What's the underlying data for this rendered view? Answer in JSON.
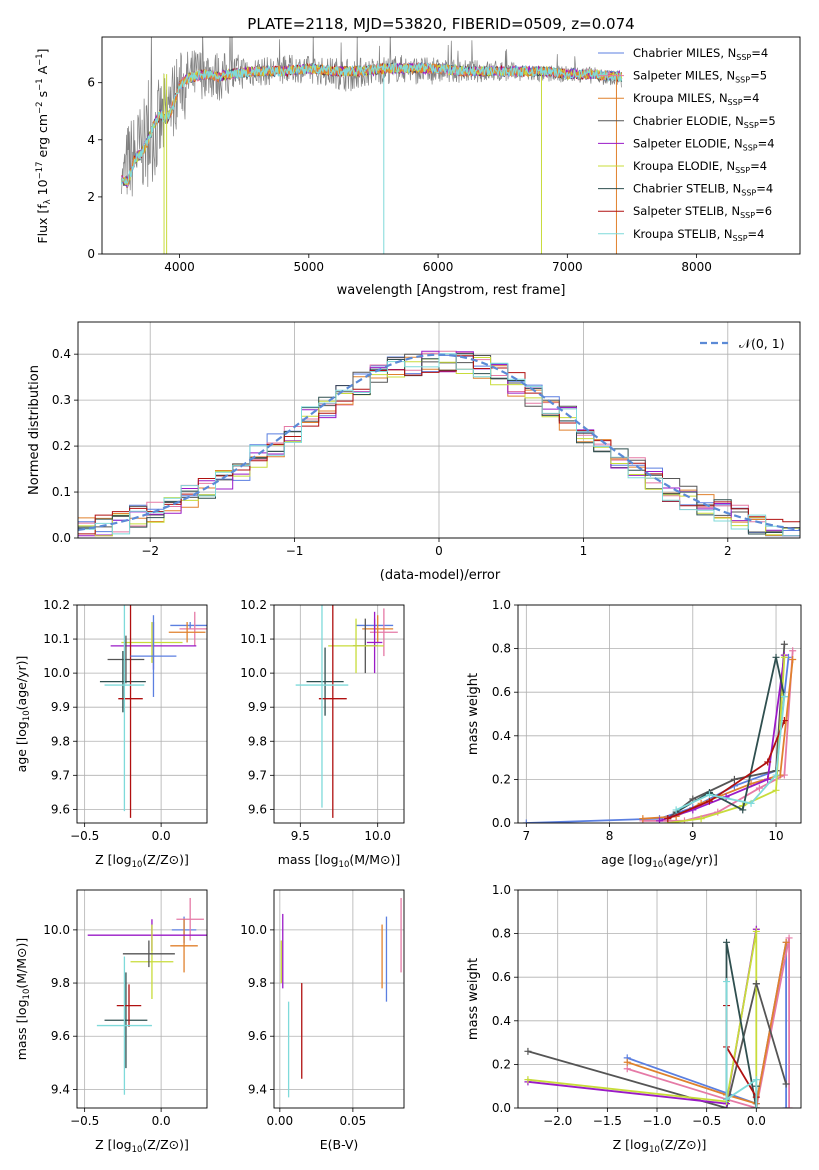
{
  "figure_title": "PLATE=2118, MJD=53820, FIBERID=0509, z=0.074",
  "chart_data": [
    {
      "id": "spectrum",
      "type": "line",
      "xlabel": "wavelength [Angstrom, rest frame]",
      "ylabel": "Flux [f_λ 10^-17 erg cm^-2 s^-1 A^-1]",
      "ylabel_parts": {
        "pre": "Flux [f",
        "sub1": "λ",
        "mid": "10",
        "sup1": "−17",
        "mid2": " erg cm",
        "sup2": "−2",
        "mid3": " s",
        "sup3": "−1",
        "mid4": " A",
        "sup4": "−1",
        "post": "]"
      },
      "xlim": [
        3400,
        8800
      ],
      "ylim": [
        0,
        7.6
      ],
      "xticks": [
        4000,
        5000,
        6000,
        7000,
        8000
      ],
      "yticks": [
        0,
        2,
        4,
        6
      ],
      "grid": false,
      "legend_position": "top-right",
      "data_gray": {
        "x": [
          3550,
          3600,
          3700,
          3800,
          3900,
          4000,
          4100,
          4200,
          4300,
          4500,
          4700,
          4900,
          5100,
          5300,
          5500,
          5700,
          5900,
          6100,
          6300,
          6500,
          6700,
          6900,
          7100,
          7300,
          7420
        ],
        "y": [
          2.6,
          3.2,
          3.7,
          4.2,
          4.9,
          5.9,
          6.2,
          6.4,
          6.2,
          6.4,
          6.4,
          6.5,
          6.4,
          6.3,
          6.4,
          6.5,
          6.4,
          6.4,
          6.4,
          6.4,
          6.3,
          6.3,
          6.3,
          6.2,
          6.0
        ],
        "noise": [
          0.5,
          1.5,
          1.6,
          1.7,
          1.6,
          1.2,
          1.0,
          0.9,
          0.9,
          0.6,
          0.5,
          0.5,
          0.5,
          0.6,
          0.5,
          0.5,
          0.5,
          0.4,
          0.4,
          0.4,
          0.3,
          0.3,
          0.3,
          0.3,
          0.3
        ]
      },
      "model_x": [
        3550,
        3600,
        3650,
        3700,
        3750,
        3800,
        3850,
        3900,
        3950,
        4000,
        4050,
        4100,
        4200,
        4300,
        4400,
        4600,
        4800,
        5000,
        5200,
        5400,
        5600,
        5800,
        6000,
        6200,
        6400,
        6600,
        6800,
        7000,
        7200,
        7420
      ],
      "model_y": [
        2.6,
        2.5,
        3.3,
        3.5,
        3.9,
        4.5,
        4.9,
        4.7,
        5.2,
        5.9,
        6.1,
        6.2,
        6.3,
        6.2,
        6.3,
        6.4,
        6.4,
        6.5,
        6.4,
        6.4,
        6.5,
        6.5,
        6.5,
        6.4,
        6.4,
        6.4,
        6.4,
        6.3,
        6.3,
        6.2
      ],
      "series": [
        {
          "name": "Chabrier MILES",
          "nssp": "4",
          "color": "#5b7fe0"
        },
        {
          "name": "Salpeter MILES",
          "nssp": "5",
          "color": "#e57aa6"
        },
        {
          "name": "Kroupa MILES",
          "nssp": "4",
          "color": "#e0812d"
        },
        {
          "name": "Chabrier ELODIE",
          "nssp": "5",
          "color": "#555555"
        },
        {
          "name": "Salpeter ELODIE",
          "nssp": "4",
          "color": "#9a1ac7"
        },
        {
          "name": "Kroupa ELODIE",
          "nssp": "4",
          "color": "#c8dc3a"
        },
        {
          "name": "Chabrier STELIB",
          "nssp": "4",
          "color": "#2f4f4f"
        },
        {
          "name": "Salpeter STELIB",
          "nssp": "6",
          "color": "#b01010"
        },
        {
          "name": "Kroupa STELIB",
          "nssp": "4",
          "color": "#7fdada"
        }
      ]
    },
    {
      "id": "residuals",
      "type": "line",
      "xlabel": "(data-model)/error",
      "ylabel": "Normed distribution",
      "xlim": [
        -2.5,
        2.5
      ],
      "ylim": [
        0,
        0.47
      ],
      "xticks": [
        -2,
        -1,
        0,
        1,
        2
      ],
      "xtick_labels": [
        "−2",
        "−1",
        "0",
        "1",
        "2"
      ],
      "yticks": [
        0.0,
        0.1,
        0.2,
        0.3,
        0.4
      ],
      "ytick_labels": [
        "0.0",
        "0.1",
        "0.2",
        "0.3",
        "0.4"
      ],
      "grid": true,
      "legend": "𝒩(0, 1)",
      "legend_position": "top-right",
      "gauss_color": "#5b8ad6"
    },
    {
      "id": "age_vs_Z",
      "type": "scatter",
      "xlabel_pre": "Z [log",
      "xlabel_sub": "10",
      "xlabel_post": "(Z/Z⊙)]",
      "ylabel_pre": "age  [log",
      "ylabel_sub": "10",
      "ylabel_post": "(age/yr)]",
      "xlim": [
        -0.55,
        0.3
      ],
      "ylim": [
        9.56,
        10.2
      ],
      "xticks": [
        -0.5,
        0.0
      ],
      "xtick_labels": [
        "−0.5",
        "0.0"
      ],
      "yticks": [
        9.6,
        9.7,
        9.8,
        9.9,
        10.0,
        10.1,
        10.2
      ],
      "ytick_labels": [
        "9.6",
        "9.7",
        "9.8",
        "9.9",
        "10.0",
        "10.1",
        "10.2"
      ],
      "grid": true,
      "points": [
        {
          "x": 0.19,
          "xerr": 0.13,
          "y": 10.14,
          "yerr": 0.01,
          "c": 0
        },
        {
          "x": 0.22,
          "xerr": 0.1,
          "y": 10.13,
          "yerr": 0.05,
          "c": 1
        },
        {
          "x": 0.17,
          "xerr": 0.12,
          "y": 10.12,
          "yerr": 0.03,
          "c": 2
        },
        {
          "x": -0.05,
          "xerr": 0.28,
          "y": 10.08,
          "yerr": 0.07,
          "c": 4
        },
        {
          "x": -0.06,
          "xerr": 0.2,
          "y": 10.09,
          "yerr": 0.06,
          "c": 5
        },
        {
          "x": -0.23,
          "xerr": 0.12,
          "y": 10.04,
          "yerr": 0.07,
          "c": 3
        },
        {
          "x": -0.25,
          "xerr": 0.15,
          "y": 9.975,
          "yerr": 0.09,
          "c": 6
        },
        {
          "x": -0.2,
          "xerr": 0.08,
          "y": 9.925,
          "yerr": 0.35,
          "c": 7
        },
        {
          "x": -0.24,
          "xerr": 0.13,
          "y": 9.965,
          "yerr": 0.37,
          "c": 8
        },
        {
          "x": -0.05,
          "xerr": 0.15,
          "y": 10.05,
          "yerr": 0.12,
          "c": 0
        }
      ]
    },
    {
      "id": "age_vs_mass",
      "type": "scatter",
      "xlabel_pre": "mass [log",
      "xlabel_sub": "10",
      "xlabel_post": "(M/M⊙)]",
      "xlim": [
        9.33,
        10.17
      ],
      "ylim": [
        9.56,
        10.2
      ],
      "xticks": [
        9.5,
        10.0
      ],
      "xtick_labels": [
        "9.5",
        "10.0"
      ],
      "yticks": [
        9.6,
        9.7,
        9.8,
        9.9,
        10.0,
        10.1,
        10.2
      ],
      "ytick_labels": [
        "9.6",
        "9.7",
        "9.8",
        "9.9",
        "10.0",
        "10.1",
        "10.2"
      ],
      "grid": true,
      "points": [
        {
          "x": 9.98,
          "xerr": 0.12,
          "y": 10.14,
          "yerr": 0.02,
          "c": 0
        },
        {
          "x": 10.04,
          "xerr": 0.09,
          "y": 10.12,
          "yerr": 0.07,
          "c": 1
        },
        {
          "x": 10.0,
          "xerr": 0.1,
          "y": 10.13,
          "yerr": 0.04,
          "c": 2
        },
        {
          "x": 9.92,
          "xerr": 0.08,
          "y": 10.08,
          "yerr": 0.08,
          "c": 3
        },
        {
          "x": 9.98,
          "xerr": 0.05,
          "y": 10.09,
          "yerr": 0.09,
          "c": 4
        },
        {
          "x": 9.86,
          "xerr": 0.18,
          "y": 10.08,
          "yerr": 0.08,
          "c": 5
        },
        {
          "x": 9.66,
          "xerr": 0.12,
          "y": 9.975,
          "yerr": 0.1,
          "c": 6
        },
        {
          "x": 9.71,
          "xerr": 0.09,
          "y": 9.925,
          "yerr": 0.35,
          "c": 7
        },
        {
          "x": 9.64,
          "xerr": 0.17,
          "y": 9.965,
          "yerr": 0.36,
          "c": 8
        }
      ]
    },
    {
      "id": "massweight_vs_age",
      "type": "line",
      "xlabel_pre": "age  [log",
      "xlabel_sub": "10",
      "xlabel_post": "(age/yr)]",
      "ylabel": "mass weight",
      "xlim": [
        6.9,
        10.3
      ],
      "ylim": [
        0,
        1.0
      ],
      "xticks": [
        7,
        8,
        9,
        10
      ],
      "xtick_labels": [
        "7",
        "8",
        "9",
        "10"
      ],
      "yticks": [
        0.0,
        0.2,
        0.4,
        0.6,
        0.8,
        1.0
      ],
      "ytick_labels": [
        "0.0",
        "0.2",
        "0.4",
        "0.6",
        "0.8",
        "1.0"
      ],
      "grid": true,
      "series": [
        {
          "c": 0,
          "x": [
            7.0,
            8.6,
            9.0,
            9.5,
            10.0,
            10.15
          ],
          "y": [
            0.0,
            0.02,
            0.07,
            0.17,
            0.24,
            0.76
          ]
        },
        {
          "c": 1,
          "x": [
            8.4,
            8.9,
            9.3,
            9.8,
            10.1,
            10.2
          ],
          "y": [
            0.01,
            0.01,
            0.05,
            0.16,
            0.22,
            0.79
          ]
        },
        {
          "c": 2,
          "x": [
            8.4,
            8.8,
            9.1,
            9.7,
            10.05,
            10.2
          ],
          "y": [
            0.02,
            0.03,
            0.09,
            0.18,
            0.22,
            0.75
          ]
        },
        {
          "c": 3,
          "x": [
            8.7,
            9.0,
            9.5,
            10.0,
            10.1
          ],
          "y": [
            0.02,
            0.11,
            0.2,
            0.24,
            0.82
          ]
        },
        {
          "c": 4,
          "x": [
            8.6,
            9.0,
            9.4,
            9.9,
            10.1
          ],
          "y": [
            0.01,
            0.06,
            0.12,
            0.2,
            0.77
          ]
        },
        {
          "c": 5,
          "x": [
            8.7,
            9.1,
            9.6,
            10.0,
            10.1
          ],
          "y": [
            0.0,
            0.02,
            0.08,
            0.15,
            0.76
          ]
        },
        {
          "c": 6,
          "x": [
            8.8,
            9.2,
            9.6,
            10.0,
            10.1
          ],
          "y": [
            0.05,
            0.14,
            0.06,
            0.76,
            0.58
          ]
        },
        {
          "c": 7,
          "x": [
            8.7,
            9.2,
            9.9,
            10.1
          ],
          "y": [
            0.02,
            0.1,
            0.28,
            0.47
          ]
        },
        {
          "c": 8,
          "x": [
            8.8,
            9.2,
            9.7,
            10.0,
            10.1
          ],
          "y": [
            0.06,
            0.13,
            0.09,
            0.22,
            0.58
          ]
        }
      ]
    },
    {
      "id": "mass_vs_Z",
      "type": "scatter",
      "xlabel_pre": "Z [log",
      "xlabel_sub": "10",
      "xlabel_post": "(Z/Z⊙)]",
      "ylabel_pre": "mass [log",
      "ylabel_sub": "10",
      "ylabel_post": "(M/M⊙)]",
      "xlim": [
        -0.55,
        0.3
      ],
      "ylim": [
        9.33,
        10.15
      ],
      "xticks": [
        -0.5,
        0.0
      ],
      "xtick_labels": [
        "−0.5",
        "0.0"
      ],
      "yticks": [
        9.4,
        9.6,
        9.8,
        10.0
      ],
      "ytick_labels": [
        "9.4",
        "9.6",
        "9.8",
        "10.0"
      ],
      "grid": true,
      "points": [
        {
          "x": 0.15,
          "xerr": 0.08,
          "y": 10.0,
          "yerr": 0.05,
          "c": 0
        },
        {
          "x": 0.19,
          "xerr": 0.09,
          "y": 10.04,
          "yerr": 0.08,
          "c": 1
        },
        {
          "x": 0.15,
          "xerr": 0.09,
          "y": 9.94,
          "yerr": 0.1,
          "c": 2
        },
        {
          "x": -0.06,
          "xerr": 0.42,
          "y": 9.98,
          "yerr": 0.06,
          "c": 4
        },
        {
          "x": -0.06,
          "xerr": 0.14,
          "y": 9.88,
          "yerr": 0.14,
          "c": 5
        },
        {
          "x": -0.08,
          "xerr": 0.17,
          "y": 9.91,
          "yerr": 0.05,
          "c": 3
        },
        {
          "x": -0.23,
          "xerr": 0.14,
          "y": 9.66,
          "yerr": 0.18,
          "c": 6
        },
        {
          "x": -0.21,
          "xerr": 0.08,
          "y": 9.715,
          "yerr": 0.08,
          "c": 7
        },
        {
          "x": -0.24,
          "xerr": 0.18,
          "y": 9.64,
          "yerr": 0.26,
          "c": 8
        }
      ]
    },
    {
      "id": "ebv",
      "type": "scatter",
      "xlabel": "E(B-V)",
      "xlim": [
        -0.004,
        0.085
      ],
      "ylim": [
        9.33,
        10.15
      ],
      "xticks": [
        0.0,
        0.05
      ],
      "xtick_labels": [
        "0.00",
        "0.05"
      ],
      "yticks": [
        9.4,
        9.6,
        9.8,
        10.0
      ],
      "ytick_labels": [
        "9.4",
        "9.6",
        "9.8",
        "10.0"
      ],
      "grid": true,
      "points": [
        {
          "x": 0.073,
          "y": 9.89,
          "yerr": 0.16,
          "c": 0
        },
        {
          "x": 0.083,
          "y": 9.98,
          "yerr": 0.14,
          "c": 1
        },
        {
          "x": 0.07,
          "y": 9.9,
          "yerr": 0.12,
          "c": 2
        },
        {
          "x": 0.002,
          "y": 9.92,
          "yerr": 0.14,
          "c": 4
        },
        {
          "x": 0.001,
          "y": 9.88,
          "yerr": 0.08,
          "c": 5
        },
        {
          "x": 0.015,
          "y": 9.62,
          "yerr": 0.18,
          "c": 7
        },
        {
          "x": 0.006,
          "y": 9.55,
          "yerr": 0.18,
          "c": 8
        }
      ]
    },
    {
      "id": "massweight_vs_Z",
      "type": "line",
      "xlabel_pre": "Z [log",
      "xlabel_sub": "10",
      "xlabel_post": "(Z/Z⊙)]",
      "ylabel": "mass weight",
      "xlim": [
        -2.4,
        0.45
      ],
      "ylim": [
        0,
        1.0
      ],
      "xticks": [
        -2.0,
        -1.5,
        -1.0,
        -0.5,
        0.0
      ],
      "xtick_labels": [
        "−2.0",
        "−1.5",
        "−1.0",
        "−0.5",
        "0.0"
      ],
      "yticks": [
        0.0,
        0.2,
        0.4,
        0.6,
        0.8,
        1.0
      ],
      "ytick_labels": [
        "0.0",
        "0.2",
        "0.4",
        "0.6",
        "0.8",
        "1.0"
      ],
      "grid": true,
      "series": [
        {
          "c": 0,
          "x": [
            -1.3,
            0.0,
            0.3,
            0.3
          ],
          "y": [
            0.23,
            0.02,
            0.76,
            0.0
          ]
        },
        {
          "c": 1,
          "x": [
            -1.3,
            -0.3,
            0.0,
            0.33,
            0.33
          ],
          "y": [
            0.18,
            0.04,
            0.0,
            0.78,
            0.0
          ]
        },
        {
          "c": 2,
          "x": [
            -1.3,
            -0.3,
            0.0,
            0.3
          ],
          "y": [
            0.21,
            0.06,
            0.02,
            0.76
          ]
        },
        {
          "c": 3,
          "x": [
            -2.3,
            -0.3,
            0.0
          ],
          "y": [
            0.26,
            0.0,
            0.57
          ]
        },
        {
          "c": 4,
          "x": [
            -2.3,
            -0.3,
            0.0
          ],
          "y": [
            0.12,
            0.02,
            0.82
          ]
        },
        {
          "c": 5,
          "x": [
            -2.3,
            -0.3,
            0.0,
            0.0
          ],
          "y": [
            0.13,
            0.03,
            0.81,
            0.0
          ]
        },
        {
          "c": 6,
          "x": [
            -0.3,
            -0.3,
            0.0,
            0.0
          ],
          "y": [
            0.04,
            0.76,
            0.0,
            0.1
          ]
        },
        {
          "c": 7,
          "x": [
            -0.3,
            -0.3,
            0.0,
            0.0
          ],
          "y": [
            0.47,
            0.28,
            0.05,
            0.0
          ]
        },
        {
          "c": 8,
          "x": [
            -0.3,
            -0.3,
            0.0,
            0.0
          ],
          "y": [
            0.58,
            0.04,
            0.13,
            0.0
          ]
        },
        {
          "c": 3,
          "x": [
            0.0,
            0.3
          ],
          "y": [
            0.57,
            0.11
          ]
        }
      ]
    }
  ]
}
